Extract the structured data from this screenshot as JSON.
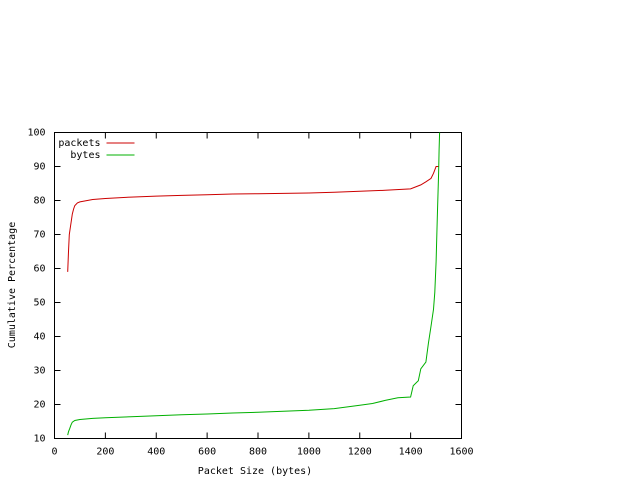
{
  "chart_data": {
    "type": "line",
    "xlabel": "Packet Size (bytes)",
    "ylabel": "Cumulative Percentage",
    "series": [
      {
        "name": "packets",
        "color": "#cc0000",
        "x": [
          52,
          55,
          58,
          62,
          66,
          70,
          75,
          80,
          90,
          100,
          150,
          200,
          300,
          400,
          500,
          600,
          700,
          800,
          900,
          1000,
          1100,
          1200,
          1300,
          1400,
          1420,
          1440,
          1460,
          1480,
          1490,
          1500,
          1510
        ],
        "values": [
          59,
          65,
          70,
          72,
          74,
          76,
          77.5,
          78.5,
          79.3,
          79.6,
          80.3,
          80.6,
          81,
          81.3,
          81.5,
          81.7,
          81.9,
          82,
          82.1,
          82.2,
          82.4,
          82.7,
          83,
          83.4,
          84,
          84.6,
          85.5,
          86.5,
          88,
          90,
          90
        ]
      },
      {
        "name": "bytes",
        "color": "#00b000",
        "x": [
          52,
          55,
          60,
          65,
          70,
          80,
          100,
          150,
          200,
          300,
          400,
          500,
          600,
          700,
          800,
          900,
          1000,
          1100,
          1200,
          1250,
          1300,
          1350,
          1400,
          1410,
          1430,
          1440,
          1460,
          1470,
          1480,
          1490,
          1495,
          1500,
          1505,
          1510,
          1512,
          1514
        ],
        "values": [
          11,
          12,
          13,
          14,
          14.8,
          15.3,
          15.6,
          15.9,
          16.1,
          16.4,
          16.7,
          17,
          17.2,
          17.5,
          17.7,
          18,
          18.3,
          18.8,
          19.8,
          20.3,
          21.2,
          22,
          22.2,
          25.5,
          27,
          30.5,
          32.5,
          38,
          43,
          48,
          53,
          62,
          75,
          88,
          95,
          100
        ]
      }
    ],
    "xlim": [
      0,
      1600
    ],
    "xticks": [
      0,
      200,
      400,
      600,
      800,
      1000,
      1200,
      1400,
      1600
    ],
    "ylim": [
      10,
      100
    ],
    "yticks": [
      10,
      20,
      30,
      40,
      50,
      60,
      70,
      80,
      90,
      100
    ],
    "legend": "top-left",
    "grid": false
  }
}
